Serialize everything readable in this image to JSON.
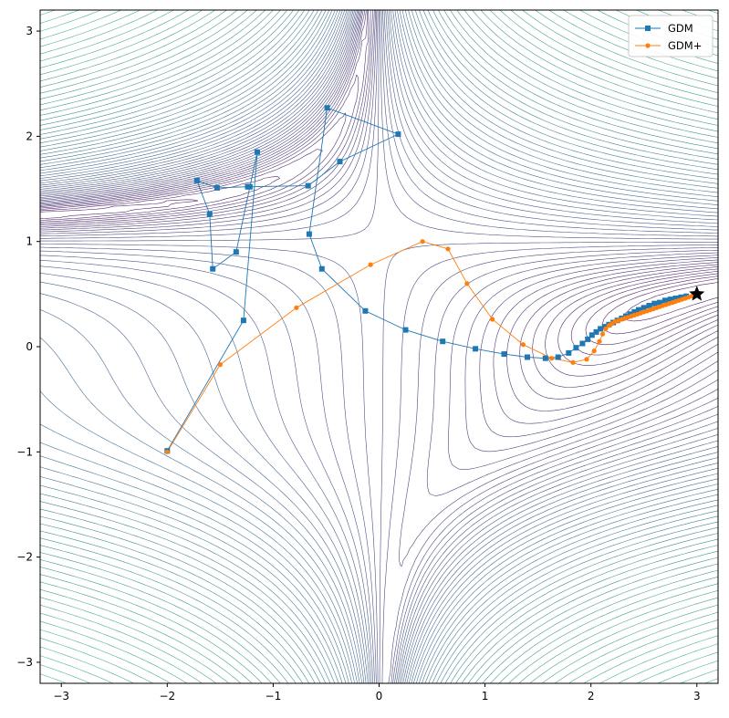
{
  "chart_data": {
    "type": "line",
    "background": "contour",
    "xlim": [
      -3.2,
      3.2
    ],
    "ylim": [
      -3.2,
      3.2
    ],
    "xticks": [
      -3,
      -2,
      -1,
      0,
      1,
      2,
      3
    ],
    "yticks": [
      -3,
      -2,
      -1,
      0,
      1,
      2,
      3
    ],
    "xtick_labels": [
      "−3",
      "−2",
      "−1",
      "0",
      "1",
      "2",
      "3"
    ],
    "ytick_labels": [
      "−3",
      "−2",
      "−1",
      "0",
      "1",
      "2",
      "3"
    ],
    "grid": false,
    "legend_position": "top-right",
    "target_point": [
      3.0,
      0.5
    ],
    "colors": {
      "contour_low": "#440154",
      "contour_mid": "#31688e",
      "contour_high": "#35b779",
      "gdm": "#1f77b4",
      "gdm_plus": "#ff7f0e",
      "star": "#000000"
    },
    "series": [
      {
        "name": "GDM",
        "marker": "square",
        "color": "#1f77b4",
        "x": [
          -2.0,
          -1.28,
          -1.15,
          -1.22,
          -1.35,
          -1.57,
          -1.6,
          -1.72,
          -1.53,
          -1.24,
          -0.67,
          -0.37,
          0.18,
          -0.49,
          -0.66,
          -0.54,
          -0.13,
          0.25,
          0.6,
          0.91,
          1.18,
          1.4,
          1.57,
          1.69,
          1.79,
          1.86,
          1.92,
          1.97,
          2.01,
          2.05,
          2.09,
          2.13,
          2.17,
          2.21,
          2.25,
          2.29,
          2.33,
          2.37,
          2.41,
          2.45,
          2.5,
          2.55,
          2.6,
          2.65,
          2.7,
          2.75,
          2.8,
          2.85,
          2.9
        ],
        "y": [
          -0.99,
          0.25,
          1.85,
          1.52,
          0.9,
          0.74,
          1.26,
          1.58,
          1.51,
          1.52,
          1.53,
          1.76,
          2.02,
          2.27,
          1.07,
          0.74,
          0.34,
          0.16,
          0.05,
          -0.02,
          -0.07,
          -0.1,
          -0.11,
          -0.1,
          -0.06,
          -0.01,
          0.03,
          0.07,
          0.11,
          0.14,
          0.17,
          0.19,
          0.21,
          0.23,
          0.25,
          0.27,
          0.29,
          0.31,
          0.33,
          0.35,
          0.37,
          0.39,
          0.41,
          0.42,
          0.44,
          0.45,
          0.46,
          0.47,
          0.48
        ]
      },
      {
        "name": "GDM+",
        "marker": "circle",
        "color": "#ff7f0e",
        "x": [
          -2.0,
          -1.5,
          -0.78,
          -0.08,
          0.41,
          0.65,
          0.83,
          1.07,
          1.36,
          1.63,
          1.83,
          1.96,
          2.03,
          2.08,
          2.11,
          2.14,
          2.17,
          2.2,
          2.23,
          2.26,
          2.29,
          2.32,
          2.35,
          2.38,
          2.41,
          2.44,
          2.47,
          2.5,
          2.53,
          2.56,
          2.59,
          2.62,
          2.65,
          2.68,
          2.71,
          2.74,
          2.77,
          2.8,
          2.83,
          2.86,
          2.89,
          2.92,
          2.95
        ],
        "y": [
          -1.0,
          -0.17,
          0.37,
          0.78,
          1.0,
          0.93,
          0.6,
          0.26,
          0.02,
          -0.11,
          -0.15,
          -0.12,
          -0.04,
          0.05,
          0.12,
          0.17,
          0.2,
          0.22,
          0.24,
          0.25,
          0.26,
          0.27,
          0.28,
          0.29,
          0.3,
          0.31,
          0.32,
          0.33,
          0.34,
          0.35,
          0.36,
          0.37,
          0.38,
          0.39,
          0.4,
          0.41,
          0.42,
          0.43,
          0.44,
          0.45,
          0.46,
          0.47,
          0.48
        ]
      }
    ]
  }
}
